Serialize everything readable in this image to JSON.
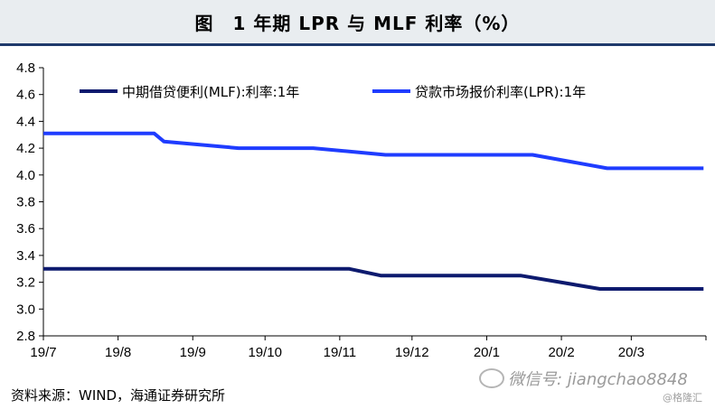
{
  "header": {
    "title": "图　1 年期 LPR 与 MLF 利率（%）"
  },
  "chart_data": {
    "type": "line",
    "title": "图　1 年期 LPR 与 MLF 利率（%）",
    "x_ticks": [
      "19/7",
      "19/8",
      "19/9",
      "19/10",
      "19/11",
      "19/12",
      "20/1",
      "20/2",
      "20/3"
    ],
    "y_ticks": [
      "2.8",
      "3.0",
      "3.2",
      "3.4",
      "3.6",
      "3.8",
      "4.0",
      "4.2",
      "4.4",
      "4.6",
      "4.8"
    ],
    "ylim": [
      2.8,
      4.8
    ],
    "x_range_months": [
      "2019-07",
      "2020-03 (end of month)"
    ],
    "grid": false,
    "legend_position": "top",
    "series": [
      {
        "name": "中期借贷便利(MLF):利率:1年",
        "color": "#0d1a6e",
        "points": [
          {
            "x": "2019-07-01",
            "y": 3.3
          },
          {
            "x": "2019-11-05",
            "y": 3.3
          },
          {
            "x": "2019-11-18",
            "y": 3.25
          },
          {
            "x": "2020-01-15",
            "y": 3.25
          },
          {
            "x": "2020-02-17",
            "y": 3.15
          },
          {
            "x": "2020-03-31",
            "y": 3.15
          }
        ]
      },
      {
        "name": "贷款市场报价利率(LPR):1年",
        "color": "#1f3cff",
        "points": [
          {
            "x": "2019-07-01",
            "y": 4.31
          },
          {
            "x": "2019-08-16",
            "y": 4.31
          },
          {
            "x": "2019-08-20",
            "y": 4.25
          },
          {
            "x": "2019-09-20",
            "y": 4.2
          },
          {
            "x": "2019-10-21",
            "y": 4.2
          },
          {
            "x": "2019-11-20",
            "y": 4.15
          },
          {
            "x": "2020-01-20",
            "y": 4.15
          },
          {
            "x": "2020-02-20",
            "y": 4.05
          },
          {
            "x": "2020-03-31",
            "y": 4.05
          }
        ]
      }
    ]
  },
  "footer": {
    "source": "资料来源：WIND，海通证券研究所",
    "watermark": "微信号: jiangchao8848",
    "sub_watermark": "@格隆汇"
  }
}
